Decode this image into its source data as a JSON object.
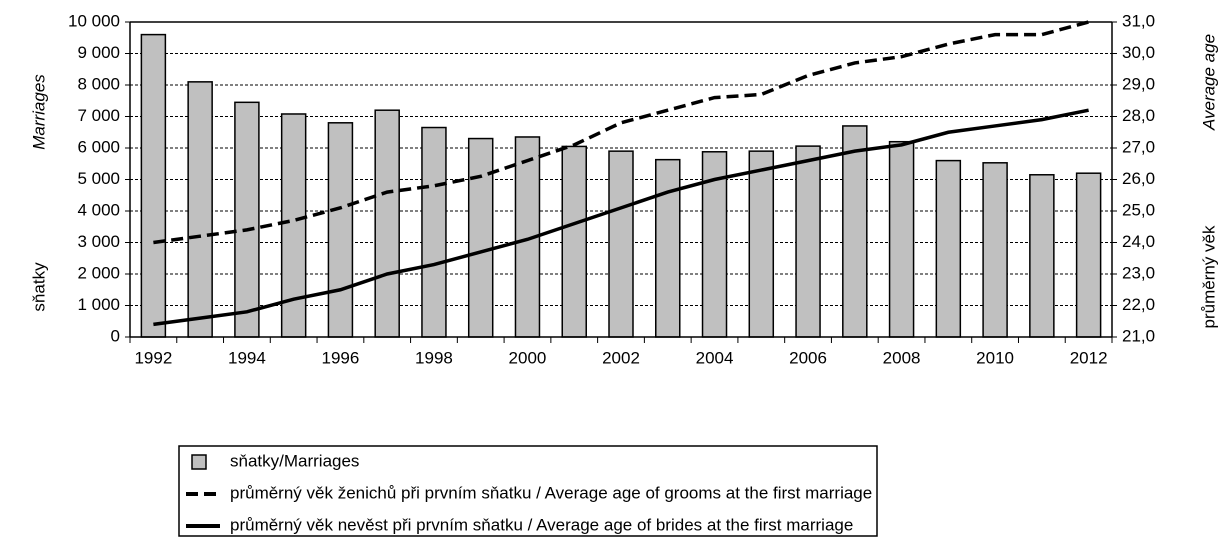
{
  "chart_data": {
    "type": "bar_line",
    "categories": [
      "1992",
      null,
      "1994",
      null,
      "1996",
      null,
      "1998",
      null,
      "2000",
      null,
      "2002",
      null,
      "2004",
      null,
      "2006",
      null,
      "2008",
      null,
      "2010",
      null,
      "2012"
    ],
    "series": [
      {
        "name": "sňatky/Marriages",
        "color": "#c0c0c0",
        "type": "bar",
        "values": [
          9600,
          8100,
          7450,
          7080,
          6800,
          7200,
          6650,
          6300,
          6350,
          6050,
          5900,
          5630,
          5880,
          5900,
          6060,
          6700,
          6200,
          5600,
          5530,
          5150,
          5200
        ]
      },
      {
        "name": "průměrný věk ženichů při prvním sňatku / Average age of grooms at the first marriage",
        "color": "#000000",
        "type": "line",
        "dash": true,
        "axis": "y2",
        "values": [
          24.0,
          24.2,
          24.4,
          24.7,
          25.1,
          25.6,
          25.8,
          26.1,
          26.6,
          27.1,
          27.8,
          28.2,
          28.6,
          28.7,
          29.3,
          29.7,
          29.9,
          30.3,
          30.6,
          30.6,
          31.0
        ]
      },
      {
        "name": "průměrný věk nevěst při prvním sňatku / Average age of brides at the first marriage",
        "color": "#000000",
        "type": "line",
        "dash": false,
        "axis": "y2",
        "values": [
          21.4,
          21.6,
          21.8,
          22.2,
          22.5,
          23.0,
          23.3,
          23.7,
          24.1,
          24.6,
          25.1,
          25.6,
          26.0,
          26.3,
          26.6,
          26.9,
          27.1,
          27.5,
          27.7,
          27.9,
          28.2
        ]
      }
    ],
    "y_label": [
      "sňatky",
      "Marriages"
    ],
    "y2_label": [
      "průměrný věk",
      "Average age"
    ],
    "ylim": [
      0,
      10000
    ],
    "yticks": [
      0,
      {
        "value": 1000,
        "label": "1 000"
      },
      {
        "value": 2000,
        "label": "2 000"
      },
      {
        "value": 3000,
        "label": "3 000"
      },
      {
        "value": 4000,
        "label": "4 000"
      },
      {
        "value": 5000,
        "label": "5 000"
      },
      {
        "value": 6000,
        "label": "6 000"
      },
      {
        "value": 7000,
        "label": "7 000"
      },
      {
        "value": 8000,
        "label": "8 000"
      },
      {
        "value": 9000,
        "label": "9 000"
      },
      {
        "value": 10000,
        "label": "10 000"
      }
    ],
    "y2lim": [
      21,
      31
    ],
    "y2ticks": [
      {
        "value": 21,
        "label": "21,0"
      },
      {
        "value": 22,
        "label": "22,0"
      },
      {
        "value": 23,
        "label": "23,0"
      },
      {
        "value": 24,
        "label": "24,0"
      },
      {
        "value": 25,
        "label": "25,0"
      },
      {
        "value": 26,
        "label": "26,0"
      },
      {
        "value": 27,
        "label": "27,0"
      },
      {
        "value": 28,
        "label": "28,0"
      },
      {
        "value": 29,
        "label": "29,0"
      },
      {
        "value": 30,
        "label": "30,0"
      },
      {
        "value": 31,
        "label": "31,0"
      }
    ],
    "grid": true,
    "legend": "bottom"
  }
}
